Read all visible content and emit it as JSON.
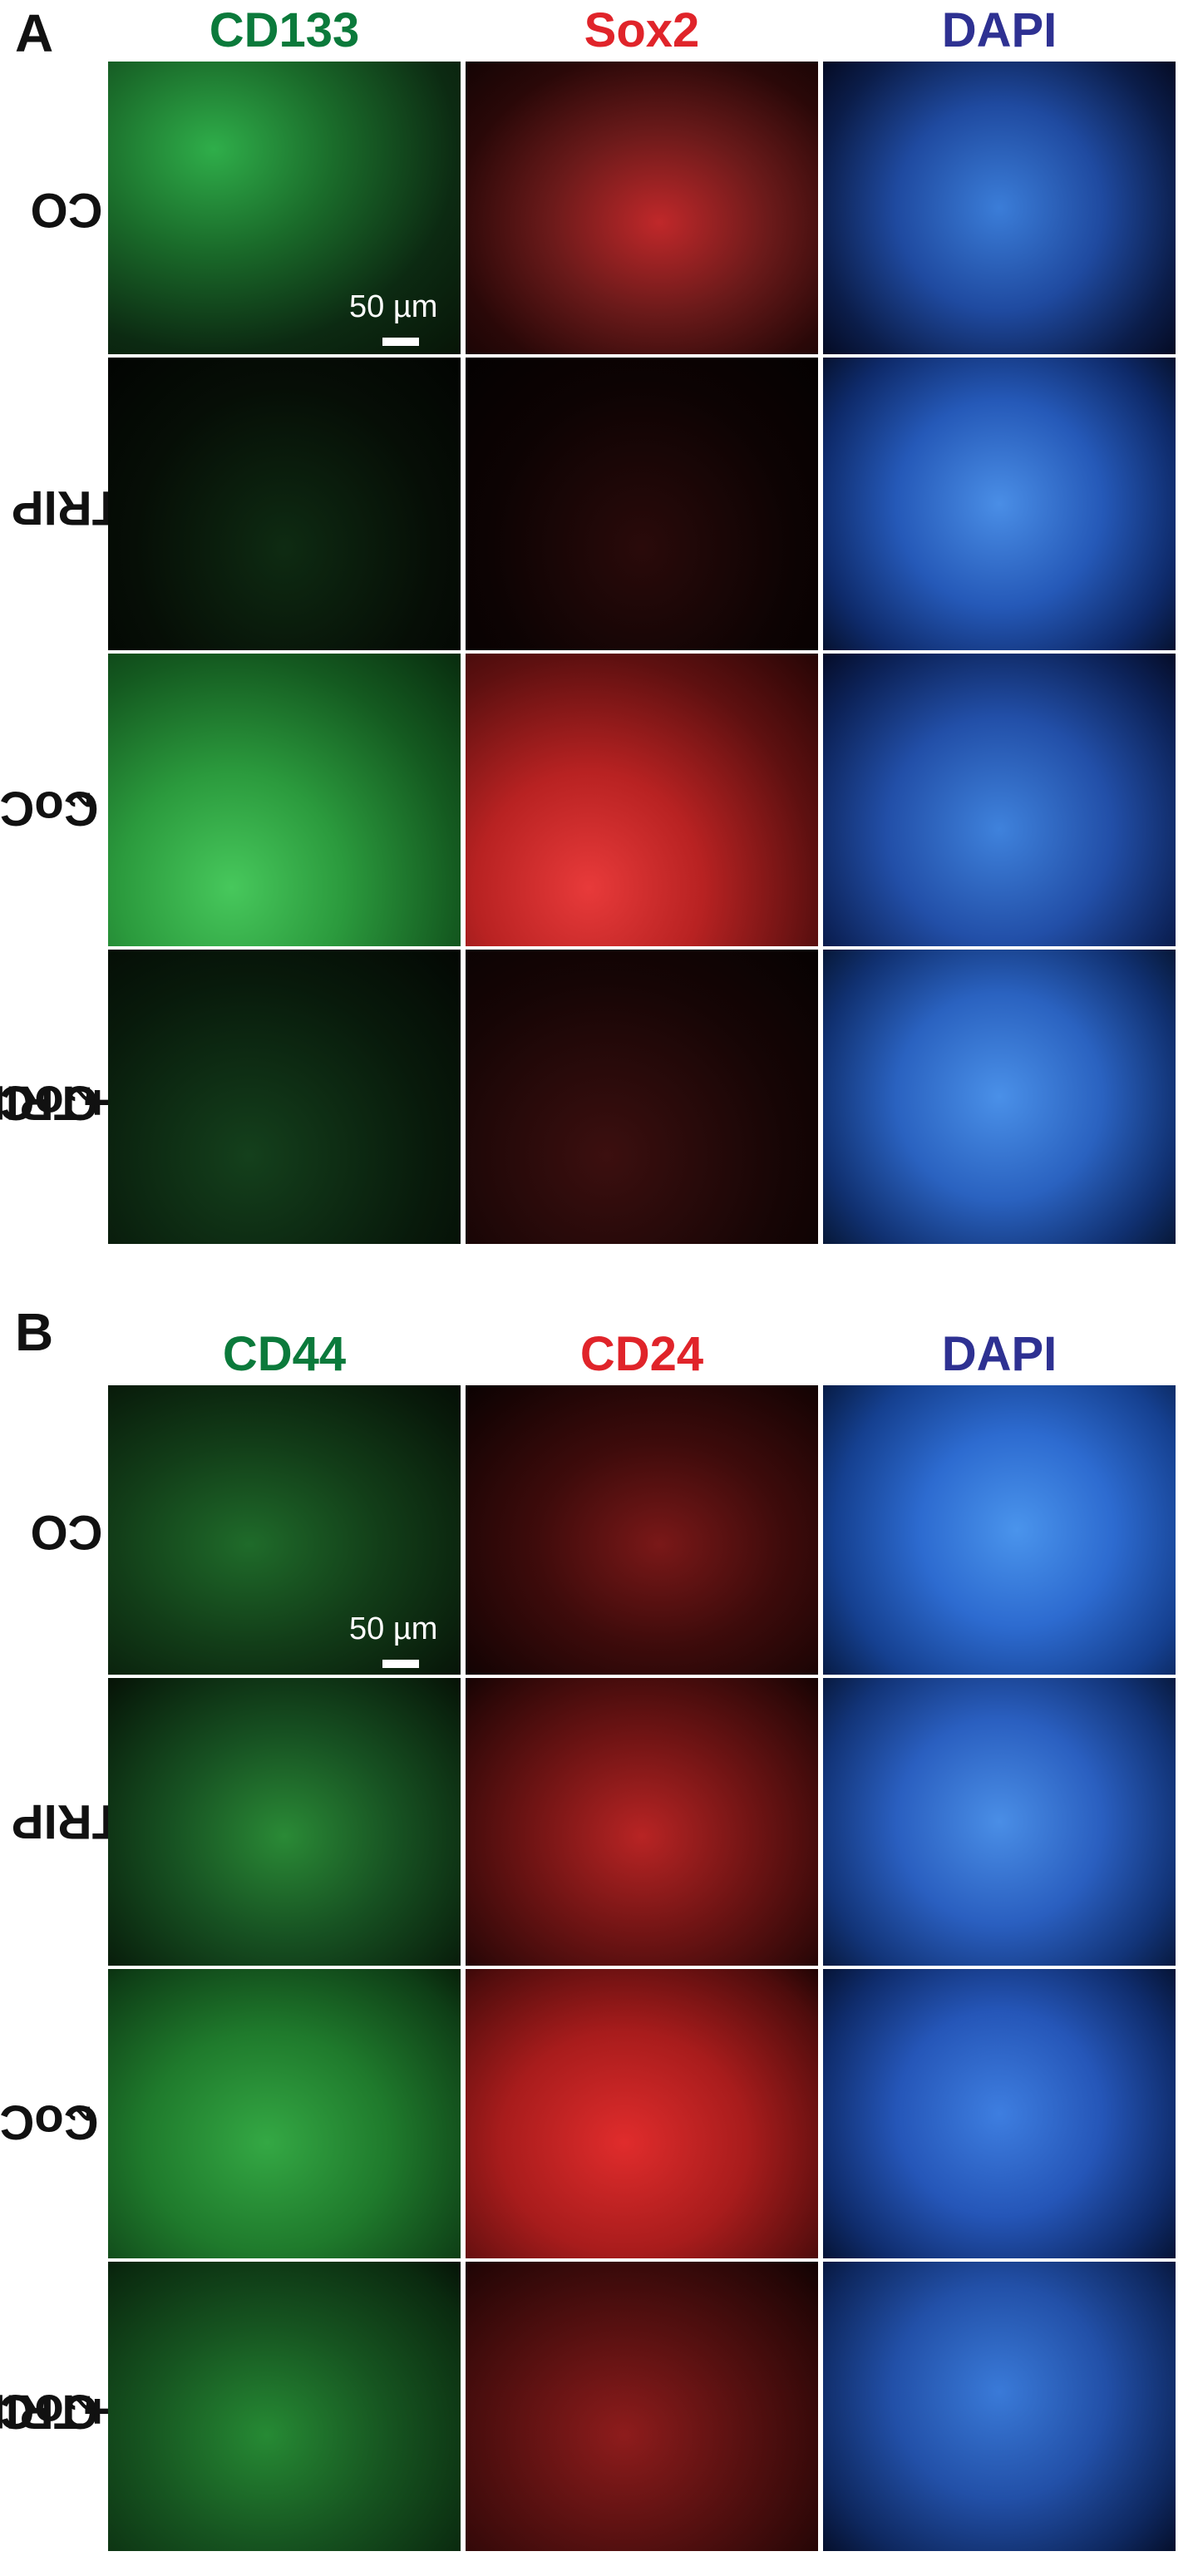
{
  "panels": [
    {
      "letter": "A",
      "columns": [
        "CD133",
        "Sox2",
        "DAPI"
      ],
      "rows": [
        {
          "label": "CO",
          "sub": ""
        },
        {
          "label": "TRIP",
          "sub": ""
        },
        {
          "label": "CoCl",
          "sub": "2"
        },
        {
          "label": "CoCl",
          "sub": "2",
          "suffix": "+TRIP"
        }
      ],
      "scale_bar": "50 µm"
    },
    {
      "letter": "B",
      "columns": [
        "CD44",
        "CD24",
        "DAPI"
      ],
      "rows": [
        {
          "label": "CO",
          "sub": ""
        },
        {
          "label": "TRIP",
          "sub": ""
        },
        {
          "label": "CoCl",
          "sub": "2"
        },
        {
          "label": "CoCl",
          "sub": "2",
          "suffix": "+TRIP"
        }
      ],
      "scale_bar": "50 µm"
    }
  ],
  "colors": {
    "green_label": "#0b7a3b",
    "red_label": "#e0242a",
    "blue_label": "#2e3192"
  }
}
